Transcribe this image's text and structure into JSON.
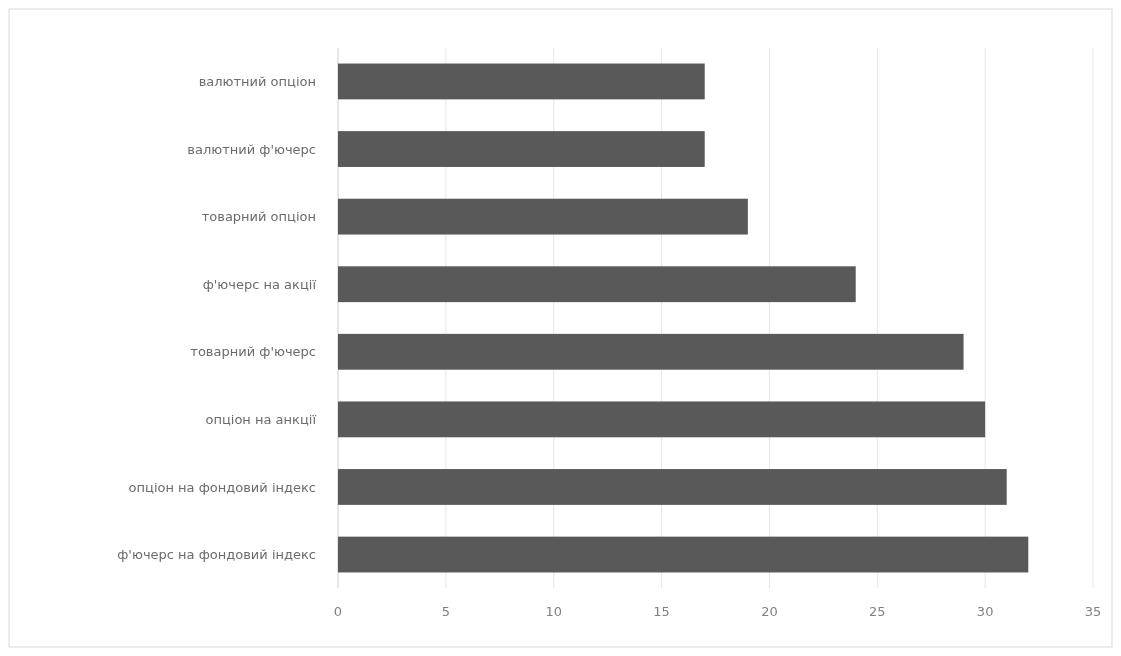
{
  "chart_data": {
    "type": "bar",
    "orientation": "horizontal",
    "categories": [
      "валютний опціон",
      "валютний ф'ючерс",
      "товарний опціон",
      "ф'ючерс на акції",
      "товарний ф'ючерс",
      "опціон на анкції",
      "опціон на фондовий індекс",
      "ф'ючерс на фондовий індекс"
    ],
    "values": [
      17,
      17,
      19,
      24,
      29,
      30,
      31,
      32
    ],
    "color": "#595959",
    "xlim": [
      0,
      35
    ],
    "xticks": [
      0,
      5,
      10,
      15,
      20,
      25,
      30,
      35
    ],
    "grid": "x"
  }
}
